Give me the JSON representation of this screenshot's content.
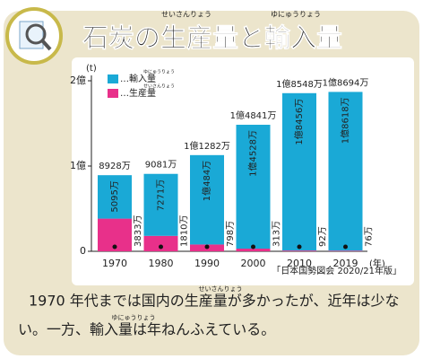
{
  "header": {
    "title": "石炭の生産量と輸入量",
    "title_ruby": [
      "せいさんりょう",
      "ゆにゅうりょう"
    ]
  },
  "chart_data": {
    "type": "stacked-bar",
    "y_unit": "(t)",
    "x_unit": "(年)",
    "categories": [
      "1970",
      "1980",
      "1990",
      "2000",
      "2010",
      "2019"
    ],
    "series": [
      {
        "name": "…生産量",
        "name_ruby": "せいさんりょう",
        "color": "#e8308a",
        "values": [
          38330000,
          18100000,
          7980000,
          3130000,
          920000,
          760000
        ],
        "value_labels": [
          "3833万",
          "1810万",
          "798万",
          "313万",
          "92万",
          "76万"
        ]
      },
      {
        "name": "…輸入量",
        "name_ruby": "ゆにゅうりょう",
        "color": "#1aa9d6",
        "values": [
          50950000,
          72710000,
          104840000,
          145280000,
          184560000,
          186180000
        ],
        "value_labels": [
          "5095万",
          "7271万",
          "1億484万",
          "1億4528万",
          "1億8456万",
          "1億8618万"
        ]
      }
    ],
    "totals": [
      89280000,
      90810000,
      112820000,
      148410000,
      185480000,
      186940000
    ],
    "total_labels": [
      "8928万",
      "9081万",
      "1億1282万",
      "1億4841万",
      "1億8548万",
      "1億8694万"
    ],
    "ylim": [
      0,
      200000000
    ],
    "yticks": [
      0,
      {
        "value": 100000000,
        "label": "1億"
      },
      {
        "value": 200000000,
        "label": "2億"
      }
    ],
    "source": "「日本国勢図会 2020/21年版」"
  },
  "caption": {
    "lines": [
      "1970 年代までは国内の生産量が多かったが、近年は少な",
      "い。一方、輸入量は年ねんふえている。"
    ],
    "ruby": [
      "せいさんりょう",
      "ゆにゅうりょう"
    ]
  }
}
